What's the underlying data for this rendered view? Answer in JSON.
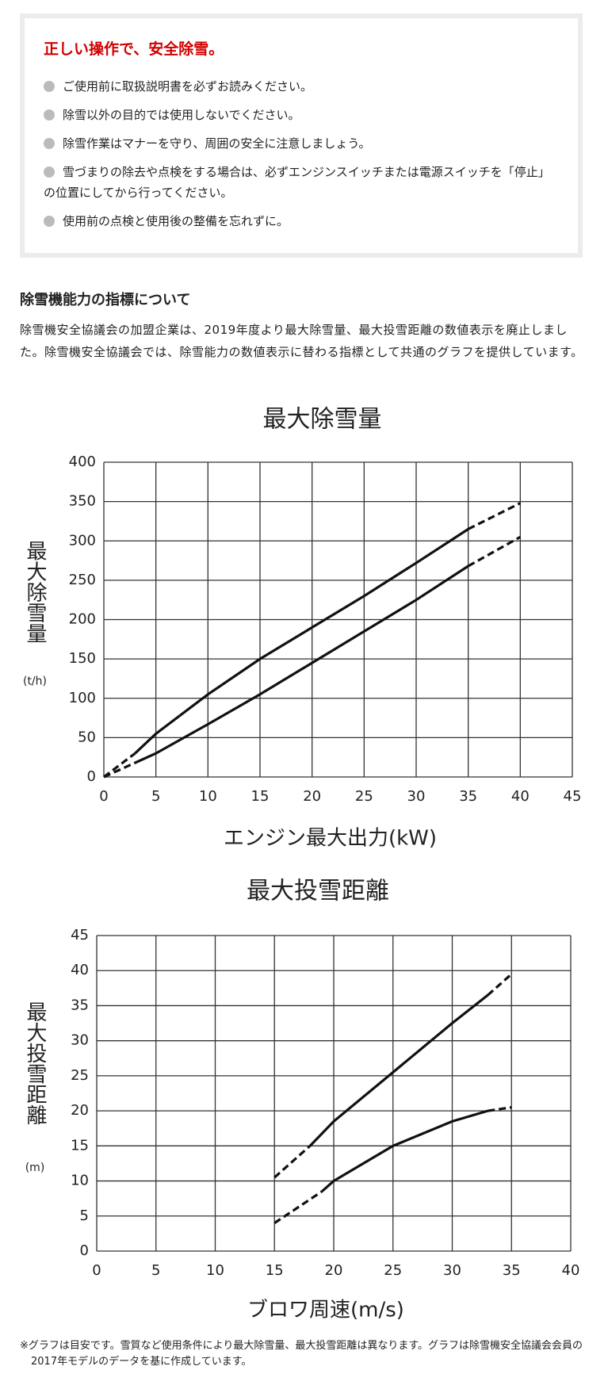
{
  "notice": {
    "title": "正しい操作で、安全除雪。",
    "items": [
      "ご使用前に取扱説明書を必ずお読みください。",
      "除雪以外の目的では使用しないでください。",
      "除雪作業はマナーを守り、周囲の安全に注意しましょう。",
      "雪づまりの除去や点検をする場合は、必ずエンジンスイッチまたは電源スイッチを「停止」の位置にしてから行ってください。",
      "使用前の点検と使用後の整備を忘れずに。"
    ]
  },
  "section": {
    "heading": "除雪機能力の指標について",
    "paragraph": "除雪機安全協議会の加盟企業は、2019年度より最大除雪量、最大投雪距離の数値表示を廃止しました。除雪機安全協議会では、除雪能力の数値表示に替わる指標として共通のグラフを提供しています。"
  },
  "chart_data": [
    {
      "type": "line",
      "title": "最大除雪量",
      "y_label": "最大除雪量",
      "y_unit": "(t/h)",
      "x_label": "エンジン最大出力(kW)",
      "grid": true,
      "xlim": [
        0,
        45
      ],
      "xticks": [
        0,
        5,
        10,
        15,
        20,
        25,
        30,
        35,
        40,
        45
      ],
      "ylim": [
        0,
        400
      ],
      "yticks": [
        0,
        50,
        100,
        150,
        200,
        250,
        300,
        350,
        400
      ],
      "series": [
        {
          "color": "#111111",
          "style": "dashed",
          "x": [
            0,
            3
          ],
          "values": [
            0,
            30
          ]
        },
        {
          "color": "#111111",
          "style": "solid",
          "x": [
            3,
            5,
            10,
            15,
            20,
            25,
            30,
            35
          ],
          "values": [
            30,
            55,
            105,
            150,
            190,
            230,
            272,
            315
          ]
        },
        {
          "color": "#111111",
          "style": "dashed",
          "x": [
            35,
            40
          ],
          "values": [
            315,
            348
          ]
        },
        {
          "color": "#111111",
          "style": "dashed",
          "x": [
            0,
            3
          ],
          "values": [
            0,
            18
          ]
        },
        {
          "color": "#111111",
          "style": "solid",
          "x": [
            3,
            5,
            10,
            15,
            20,
            25,
            30,
            35
          ],
          "values": [
            18,
            30,
            67,
            105,
            145,
            185,
            225,
            268
          ]
        },
        {
          "color": "#111111",
          "style": "dashed",
          "x": [
            35,
            40
          ],
          "values": [
            268,
            305
          ]
        }
      ]
    },
    {
      "type": "line",
      "title": "最大投雪距離",
      "y_label": "最大投雪距離",
      "y_unit": "(m)",
      "x_label": "ブロワ周速(m/s)",
      "grid": true,
      "xlim": [
        0,
        40
      ],
      "xticks": [
        0,
        5,
        10,
        15,
        20,
        25,
        30,
        35,
        40
      ],
      "ylim": [
        0,
        45
      ],
      "yticks": [
        0,
        5,
        10,
        15,
        20,
        25,
        30,
        35,
        40,
        45
      ],
      "series": [
        {
          "color": "#111111",
          "style": "dashed",
          "x": [
            15,
            18
          ],
          "values": [
            10.5,
            15
          ]
        },
        {
          "color": "#111111",
          "style": "solid",
          "x": [
            18,
            20,
            25,
            30,
            33
          ],
          "values": [
            15,
            18.5,
            25.5,
            32.5,
            36.5
          ]
        },
        {
          "color": "#111111",
          "style": "dashed",
          "x": [
            33,
            35
          ],
          "values": [
            36.5,
            39.5
          ]
        },
        {
          "color": "#111111",
          "style": "dashed",
          "x": [
            15,
            19
          ],
          "values": [
            4,
            8.5
          ]
        },
        {
          "color": "#111111",
          "style": "solid",
          "x": [
            19,
            20,
            25,
            30,
            33
          ],
          "values": [
            8.5,
            10,
            15,
            18.5,
            20
          ]
        },
        {
          "color": "#111111",
          "style": "dashed",
          "x": [
            33,
            35
          ],
          "values": [
            20,
            20.5
          ]
        }
      ]
    }
  ],
  "footnote": "※グラフは目安です。雪質など使用条件により最大除雪量、最大投雪距離は異なります。グラフは除雪機安全協議会会員の2017年モデルのデータを基に作成しています。"
}
